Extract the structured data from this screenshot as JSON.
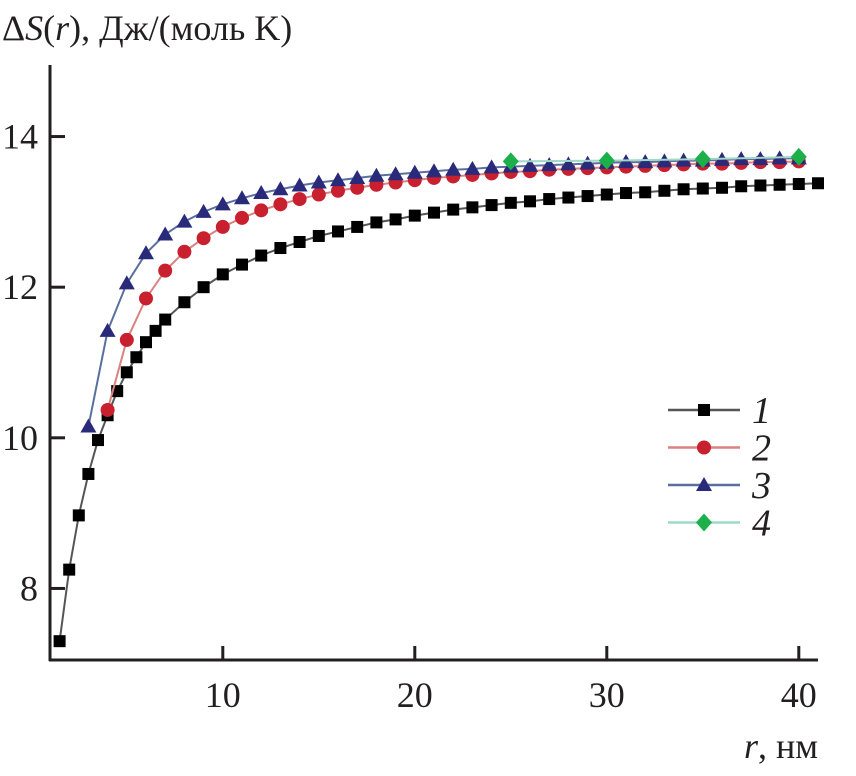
{
  "chart_data": {
    "type": "line",
    "title_parts": {
      "delta": "Δ",
      "s": "S",
      "open": "(",
      "r": "r",
      "rest": "), Дж/(моль K)"
    },
    "xlabel_parts": {
      "r": "r",
      "rest": ", нм"
    },
    "xlim": [
      1,
      41
    ],
    "ylim": [
      7.05,
      14.95
    ],
    "xticks": [
      10,
      20,
      30,
      40
    ],
    "yticks": [
      8,
      10,
      12,
      14
    ],
    "xtick_labels": [
      "10",
      "20",
      "30",
      "40"
    ],
    "ytick_labels": [
      "8",
      "10",
      "12",
      "14"
    ],
    "legend_position": "center-right",
    "series": [
      {
        "name": "1",
        "marker": "square",
        "color": "#000000",
        "line_color": "#555555",
        "x": [
          1.5,
          2,
          2.5,
          3,
          3.5,
          4,
          4.5,
          5,
          5.5,
          6,
          6.5,
          7,
          8,
          9,
          10,
          11,
          12,
          13,
          14,
          15,
          16,
          17,
          18,
          19,
          20,
          21,
          22,
          23,
          24,
          25,
          26,
          27,
          28,
          29,
          30,
          31,
          32,
          33,
          34,
          35,
          36,
          37,
          38,
          39,
          40,
          41
        ],
        "y": [
          7.3,
          8.25,
          8.97,
          9.52,
          9.97,
          10.3,
          10.62,
          10.87,
          11.07,
          11.27,
          11.42,
          11.57,
          11.8,
          12.0,
          12.17,
          12.3,
          12.42,
          12.52,
          12.6,
          12.68,
          12.74,
          12.8,
          12.86,
          12.9,
          12.95,
          12.99,
          13.03,
          13.06,
          13.09,
          13.12,
          13.14,
          13.17,
          13.19,
          13.21,
          13.23,
          13.25,
          13.26,
          13.28,
          13.3,
          13.31,
          13.32,
          13.34,
          13.35,
          13.36,
          13.37,
          13.38
        ]
      },
      {
        "name": "2",
        "marker": "circle",
        "color": "#c8202f",
        "line_color": "#d9827f",
        "x": [
          4,
          5,
          6,
          7,
          8,
          9,
          10,
          11,
          12,
          13,
          14,
          15,
          16,
          17,
          18,
          19,
          20,
          21,
          22,
          23,
          24,
          25,
          26,
          27,
          28,
          29,
          30,
          31,
          32,
          33,
          34,
          35,
          36,
          37,
          38,
          39,
          40
        ],
        "y": [
          10.37,
          11.3,
          11.85,
          12.22,
          12.47,
          12.65,
          12.8,
          12.92,
          13.02,
          13.1,
          13.17,
          13.23,
          13.28,
          13.32,
          13.36,
          13.39,
          13.42,
          13.45,
          13.47,
          13.49,
          13.51,
          13.53,
          13.54,
          13.56,
          13.57,
          13.58,
          13.59,
          13.6,
          13.61,
          13.62,
          13.63,
          13.64,
          13.64,
          13.65,
          13.66,
          13.66,
          13.67
        ]
      },
      {
        "name": "3",
        "marker": "triangle",
        "color": "#2a2a7a",
        "line_color": "#5a6fa0",
        "x": [
          3,
          4,
          5,
          6,
          7,
          8,
          9,
          10,
          11,
          12,
          13,
          14,
          15,
          16,
          17,
          18,
          19,
          20,
          21,
          22,
          23,
          24,
          25,
          26,
          27,
          28,
          29,
          30,
          31,
          32,
          33,
          34,
          35,
          36,
          37,
          38,
          39,
          40
        ],
        "y": [
          10.15,
          11.42,
          12.05,
          12.45,
          12.7,
          12.87,
          13.0,
          13.1,
          13.18,
          13.25,
          13.3,
          13.35,
          13.39,
          13.42,
          13.45,
          13.48,
          13.5,
          13.52,
          13.54,
          13.56,
          13.57,
          13.59,
          13.6,
          13.61,
          13.62,
          13.63,
          13.64,
          13.65,
          13.66,
          13.66,
          13.67,
          13.68,
          13.68,
          13.69,
          13.7,
          13.7,
          13.71,
          13.71
        ]
      },
      {
        "name": "4",
        "marker": "diamond",
        "color": "#1bb04a",
        "line_color": "#9fd9c8",
        "x": [
          25,
          30,
          35,
          40
        ],
        "y": [
          13.67,
          13.68,
          13.7,
          13.73
        ]
      }
    ]
  }
}
